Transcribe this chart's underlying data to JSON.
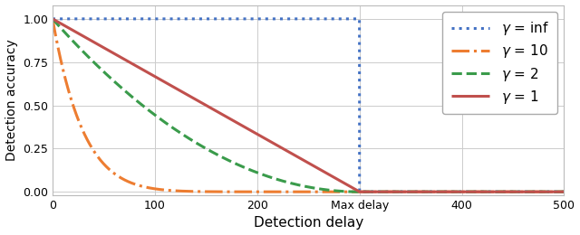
{
  "title": "",
  "xlabel": "Detection delay",
  "ylabel": "Detection accuracy",
  "xlim": [
    0,
    500
  ],
  "ylim": [
    -0.02,
    1.08
  ],
  "max_delay": 300,
  "xticks": [
    0,
    100,
    200,
    300,
    400,
    500
  ],
  "xtick_labels": [
    "0",
    "100",
    "200",
    "Max delay",
    "400",
    "500"
  ],
  "yticks": [
    0.0,
    0.25,
    0.5,
    0.75,
    1.0
  ],
  "ytick_labels": [
    "0.00",
    "0.25",
    "0.50",
    "0.75",
    "1.00"
  ],
  "series": [
    {
      "label": "$\\gamma = \\mathrm{inf}$",
      "gamma": null,
      "color": "#4472C4",
      "linestyle": "dotted",
      "linewidth": 2.2,
      "dashes": []
    },
    {
      "label": "$\\gamma = 10$",
      "gamma": 10,
      "color": "#ED7D31",
      "linestyle": "dashdot",
      "linewidth": 2.2
    },
    {
      "label": "$\\gamma = 2$",
      "gamma": 2,
      "color": "#3A9B4B",
      "linestyle": "dashed",
      "linewidth": 2.2
    },
    {
      "label": "$\\gamma = 1$",
      "gamma": 1,
      "color": "#C0504D",
      "linestyle": "solid",
      "linewidth": 2.2
    }
  ],
  "legend_fontsize": 11,
  "tick_fontsize": 9,
  "xlabel_fontsize": 11,
  "ylabel_fontsize": 10,
  "grid_color": "#CCCCCC",
  "grid_linewidth": 0.7,
  "spine_color": "#BBBBBB",
  "background_color": "#FFFFFF",
  "figsize": [
    6.4,
    2.6
  ],
  "dpi": 100
}
